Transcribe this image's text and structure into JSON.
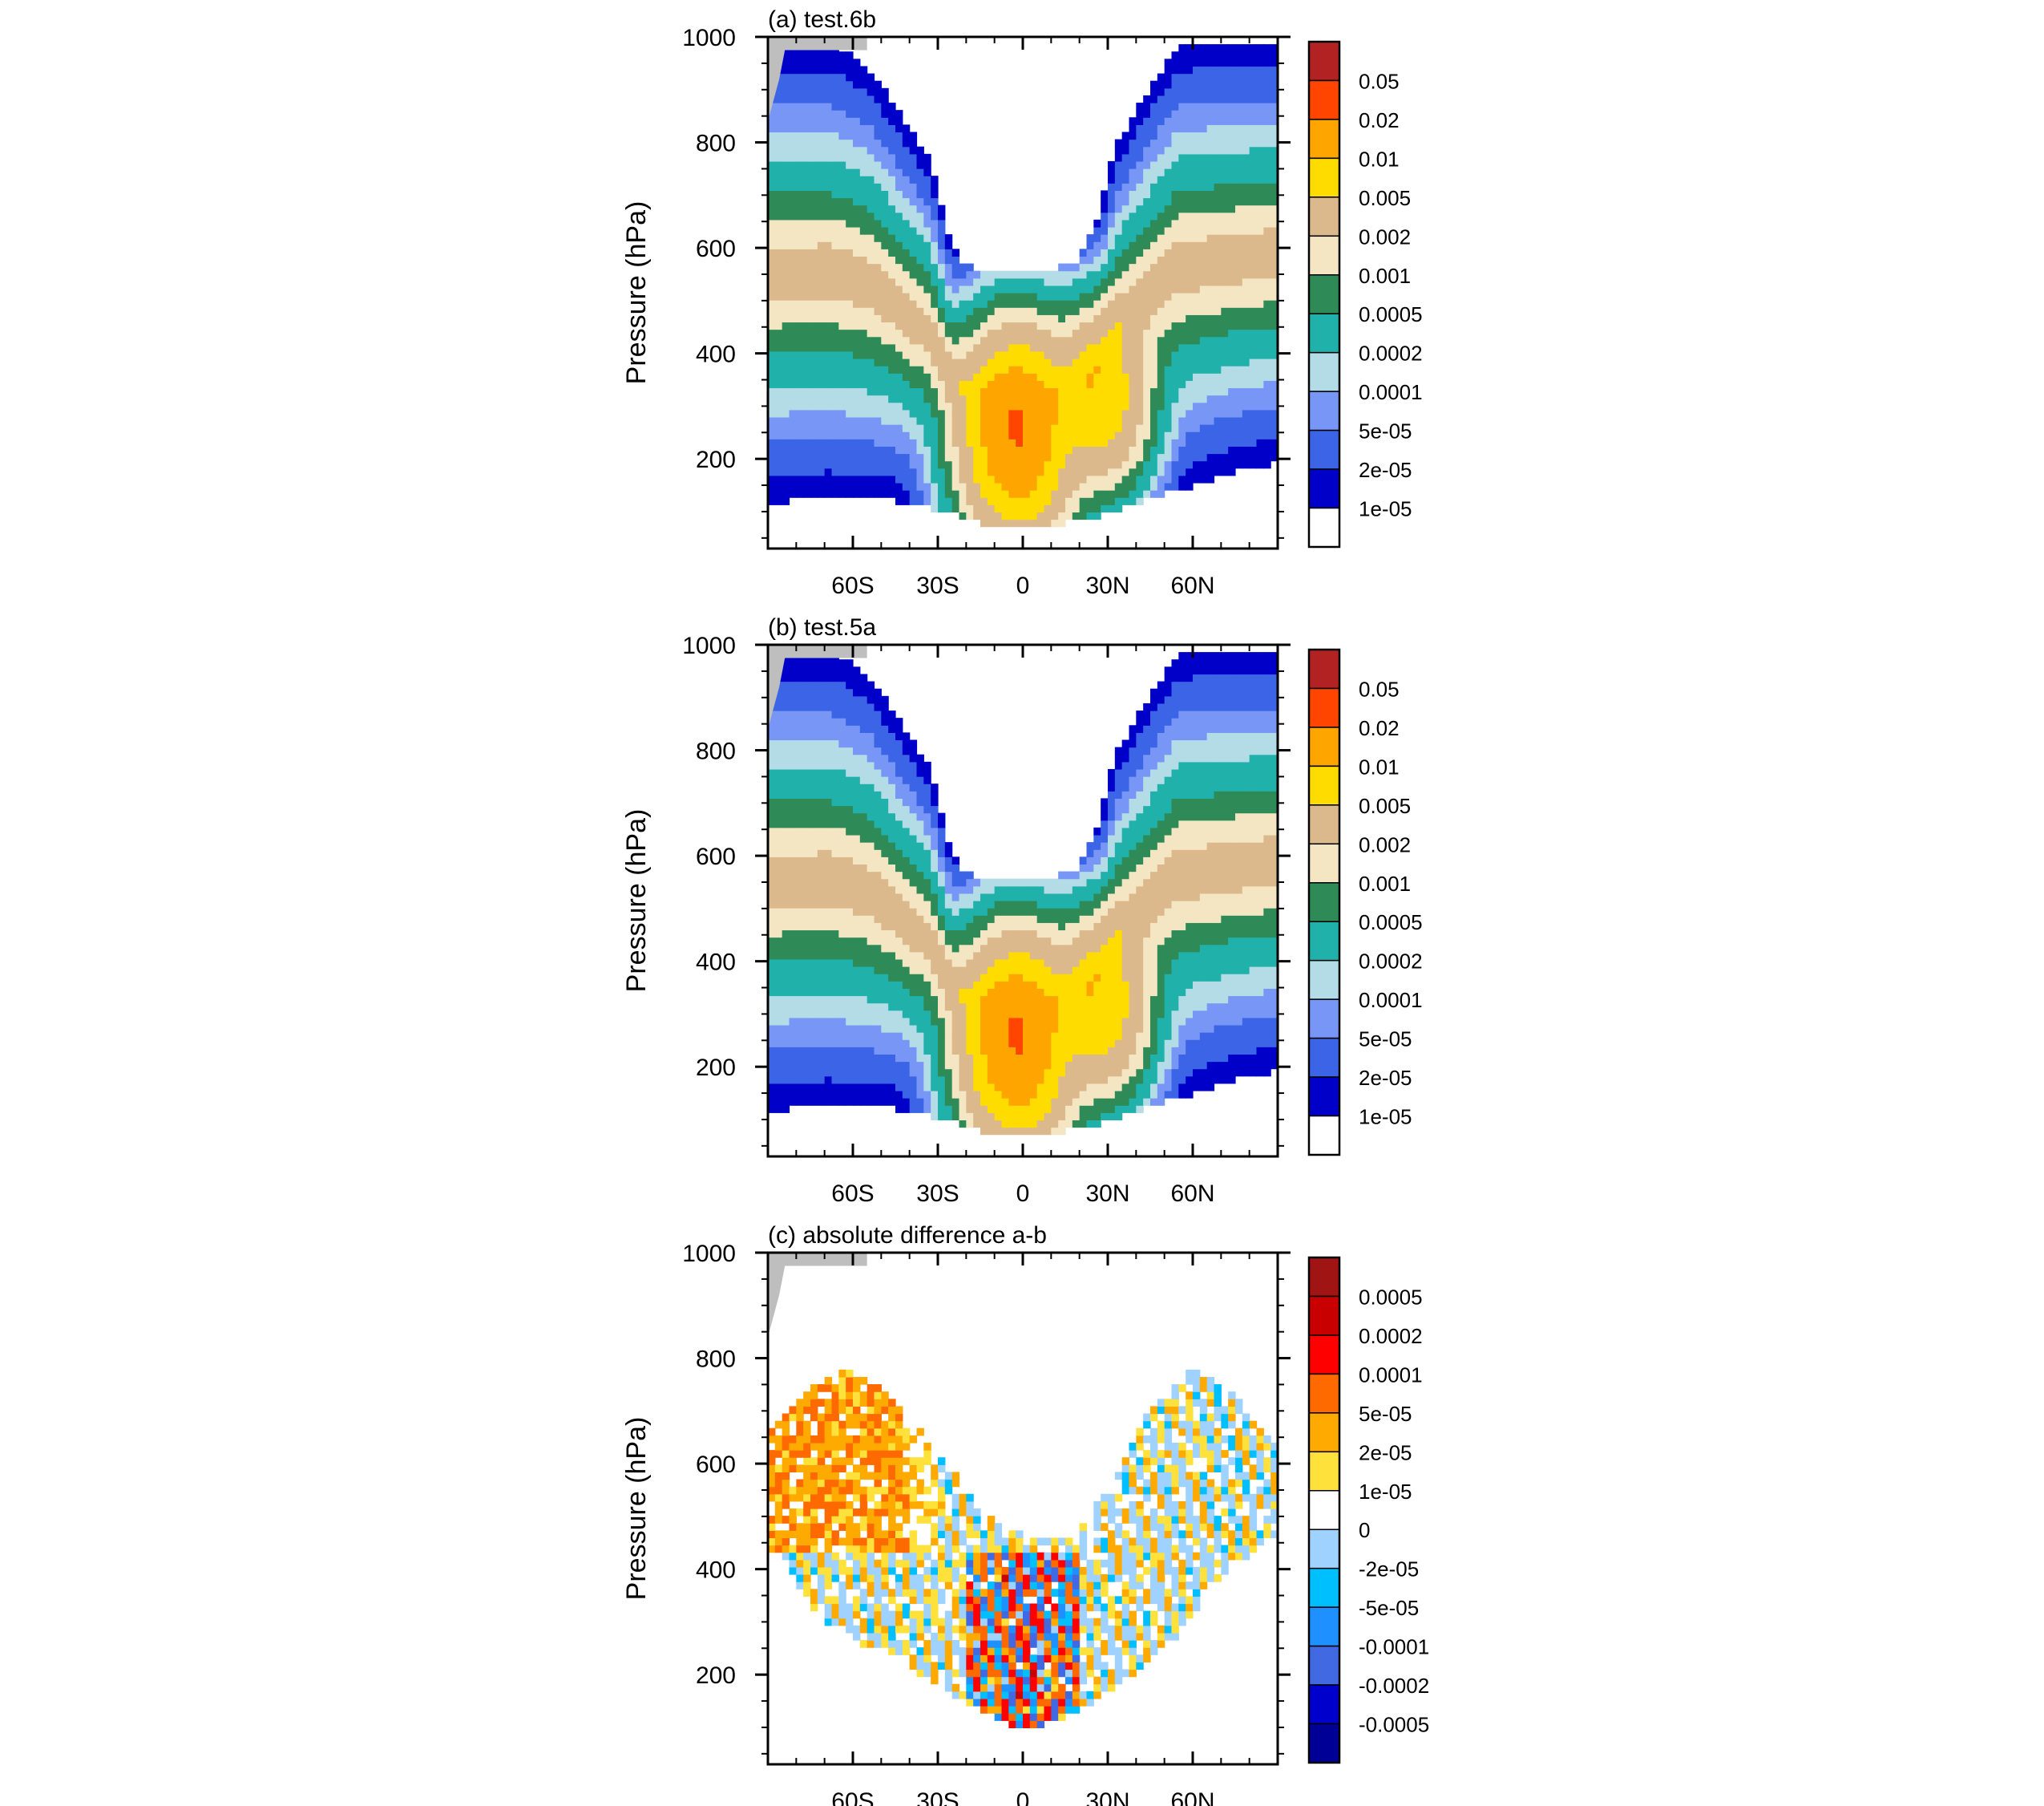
{
  "figure": {
    "panels": [
      "a",
      "b",
      "c"
    ]
  },
  "colors": {
    "seq_palette": [
      "#ffffff",
      "#0000c8",
      "#3c64e6",
      "#7896f5",
      "#b4dce6",
      "#20b2aa",
      "#2e8b57",
      "#f5e6c3",
      "#dcb98c",
      "#ffdc00",
      "#ffa500",
      "#ff4500",
      "#b22222"
    ],
    "div_palette": [
      "#000096",
      "#0000cd",
      "#4169e1",
      "#1e90ff",
      "#00bfff",
      "#a0d2ff",
      "#ffffff",
      "#ffe13c",
      "#ffaa00",
      "#ff6a00",
      "#ff0000",
      "#c80000",
      "#a01414"
    ],
    "missing": "#bebebe",
    "line": "#000000"
  },
  "chart_data": [
    {
      "panel": "a",
      "type": "heatmap",
      "subtype": "filled-contour",
      "title": "(a) test.6b",
      "xlabel": "",
      "ylabel": "Pressure (hPa)",
      "xlim": [
        -90,
        90
      ],
      "ylim": [
        1000,
        30
      ],
      "x_ticks": [
        -60,
        -30,
        0,
        30,
        60
      ],
      "x_tick_labels": [
        "60S",
        "30S",
        "0",
        "30N",
        "60N"
      ],
      "y_ticks": [
        200,
        400,
        600,
        800,
        1000
      ],
      "y_tick_labels": [
        "200",
        "400",
        "600",
        "800",
        "1000"
      ],
      "colorbar_levels": [
        "0.05",
        "0.02",
        "0.01",
        "0.005",
        "0.002",
        "0.001",
        "0.0005",
        "0.0002",
        "0.0001",
        "5e-05",
        "2e-05",
        "1e-05"
      ],
      "palette": "seq",
      "field": {
        "levels": [
          1e-05,
          2e-05,
          5e-05,
          0.0001,
          0.0002,
          0.0005,
          0.001,
          0.002,
          0.005,
          0.01,
          0.02,
          0.05
        ],
        "boundary_top_hPa": [
          [
            -90,
            130
          ],
          [
            -70,
            140
          ],
          [
            -45,
            135
          ],
          [
            -25,
            110
          ],
          [
            -10,
            85
          ],
          [
            0,
            85
          ],
          [
            12,
            90
          ],
          [
            25,
            100
          ],
          [
            45,
            140
          ],
          [
            60,
            160
          ],
          [
            75,
            190
          ],
          [
            88,
            205
          ]
        ],
        "boundary_bottom_hPa": [
          [
            -90,
            1000
          ],
          [
            -80,
            1000
          ],
          [
            -68,
            1000
          ],
          [
            -55,
            960
          ],
          [
            -45,
            880
          ],
          [
            -33,
            780
          ],
          [
            -25,
            620
          ],
          [
            -20,
            580
          ],
          [
            -10,
            570
          ],
          [
            0,
            575
          ],
          [
            10,
            575
          ],
          [
            20,
            590
          ],
          [
            27,
            680
          ],
          [
            33,
            810
          ],
          [
            45,
            920
          ],
          [
            55,
            1000
          ],
          [
            90,
            1000
          ]
        ],
        "decay_km": 2.5
      }
    },
    {
      "panel": "b",
      "type": "heatmap",
      "subtype": "filled-contour",
      "title": "(b) test.5a",
      "xlabel": "",
      "ylabel": "Pressure (hPa)",
      "xlim": [
        -90,
        90
      ],
      "ylim": [
        1000,
        30
      ],
      "x_ticks": [
        -60,
        -30,
        0,
        30,
        60
      ],
      "x_tick_labels": [
        "60S",
        "30S",
        "0",
        "30N",
        "60N"
      ],
      "y_ticks": [
        200,
        400,
        600,
        800,
        1000
      ],
      "y_tick_labels": [
        "200",
        "400",
        "600",
        "800",
        "1000"
      ],
      "colorbar_levels": [
        "0.05",
        "0.02",
        "0.01",
        "0.005",
        "0.002",
        "0.001",
        "0.0005",
        "0.0002",
        "0.0001",
        "5e-05",
        "2e-05",
        "1e-05"
      ],
      "palette": "seq",
      "field": {
        "levels": [
          1e-05,
          2e-05,
          5e-05,
          0.0001,
          0.0002,
          0.0005,
          0.001,
          0.002,
          0.005,
          0.01,
          0.02,
          0.05
        ],
        "boundary_top_hPa": [
          [
            -90,
            130
          ],
          [
            -70,
            140
          ],
          [
            -45,
            135
          ],
          [
            -25,
            110
          ],
          [
            -10,
            85
          ],
          [
            0,
            85
          ],
          [
            12,
            90
          ],
          [
            25,
            100
          ],
          [
            45,
            140
          ],
          [
            60,
            160
          ],
          [
            75,
            190
          ],
          [
            88,
            205
          ]
        ],
        "boundary_bottom_hPa": [
          [
            -90,
            1000
          ],
          [
            -80,
            1000
          ],
          [
            -68,
            1000
          ],
          [
            -55,
            960
          ],
          [
            -45,
            880
          ],
          [
            -33,
            780
          ],
          [
            -25,
            620
          ],
          [
            -20,
            580
          ],
          [
            -10,
            570
          ],
          [
            0,
            575
          ],
          [
            10,
            575
          ],
          [
            20,
            590
          ],
          [
            27,
            680
          ],
          [
            33,
            810
          ],
          [
            45,
            920
          ],
          [
            55,
            1000
          ],
          [
            90,
            1000
          ]
        ],
        "decay_km": 2.5
      }
    },
    {
      "panel": "c",
      "type": "heatmap",
      "subtype": "filled-contour",
      "title": "(c) absolute difference a-b",
      "xlabel": "",
      "ylabel": "Pressure (hPa)",
      "xlim": [
        -90,
        90
      ],
      "ylim": [
        1000,
        30
      ],
      "x_ticks": [
        -60,
        -30,
        0,
        30,
        60
      ],
      "x_tick_labels": [
        "60S",
        "30S",
        "0",
        "30N",
        "60N"
      ],
      "y_ticks": [
        200,
        400,
        600,
        800,
        1000
      ],
      "y_tick_labels": [
        "200",
        "400",
        "600",
        "800",
        "1000"
      ],
      "colorbar_levels": [
        "0.0005",
        "0.0002",
        "0.0001",
        "5e-05",
        "2e-05",
        "1e-05",
        "0",
        "-2e-05",
        "-5e-05",
        "-0.0001",
        "-0.0002",
        "-0.0005"
      ],
      "palette": "div",
      "field": {
        "levels": [
          -0.0005,
          -0.0002,
          -0.0001,
          -5e-05,
          -2e-05,
          0,
          1e-05,
          2e-05,
          5e-05,
          0.0001,
          0.0002,
          0.0005
        ],
        "active_region_hPa": [
          [
            -85,
            450
          ],
          [
            -75,
            330
          ],
          [
            -60,
            280
          ],
          [
            -45,
            250
          ],
          [
            -30,
            190
          ],
          [
            -15,
            150
          ],
          [
            0,
            110
          ],
          [
            15,
            130
          ],
          [
            30,
            180
          ],
          [
            50,
            260
          ],
          [
            70,
            400
          ],
          [
            88,
            470
          ]
        ],
        "active_bottom_hPa": [
          [
            -90,
            680
          ],
          [
            -75,
            760
          ],
          [
            -60,
            800
          ],
          [
            -45,
            730
          ],
          [
            -30,
            650
          ],
          [
            -15,
            520
          ],
          [
            0,
            480
          ],
          [
            15,
            470
          ],
          [
            30,
            560
          ],
          [
            45,
            720
          ],
          [
            60,
            800
          ],
          [
            75,
            740
          ],
          [
            88,
            660
          ]
        ]
      }
    }
  ]
}
